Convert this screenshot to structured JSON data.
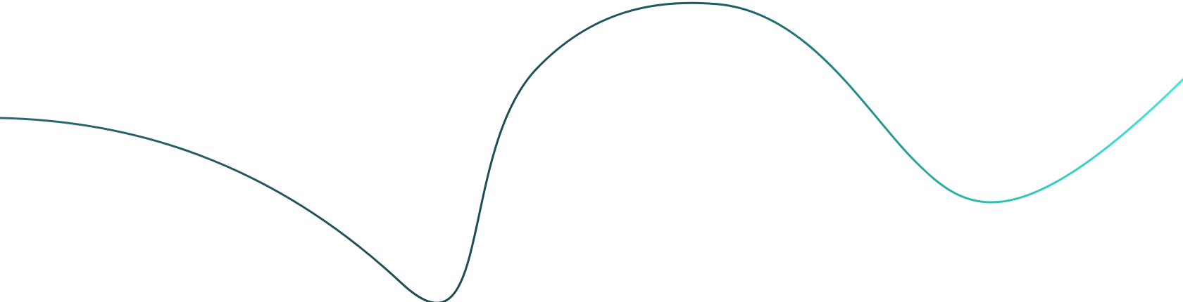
{
  "decoration": {
    "shape": "wave-line",
    "gradient_colors": [
      "#2a6a72",
      "#1f4a52",
      "#1d5e66",
      "#2fc3b3",
      "#40e6dc"
    ],
    "background": "#ffffff"
  }
}
